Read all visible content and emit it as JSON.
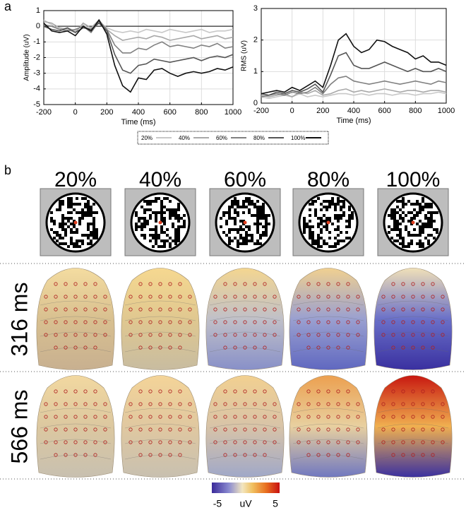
{
  "panel_labels": [
    "a",
    "b"
  ],
  "chart_data": [
    {
      "type": "line",
      "xlabel": "Time (ms)",
      "ylabel": "Amplitude (uV)",
      "x": [
        -200,
        -150,
        -100,
        -50,
        0,
        50,
        100,
        150,
        200,
        250,
        300,
        350,
        400,
        450,
        500,
        550,
        600,
        650,
        700,
        750,
        800,
        850,
        900,
        950,
        1000
      ],
      "xlim": [
        -200,
        1000
      ],
      "xticks": [
        -200,
        0,
        200,
        400,
        600,
        800,
        1000
      ],
      "ylim": [
        -5,
        1
      ],
      "yticks": [
        -5,
        -4,
        -3,
        -2,
        -1,
        0,
        1
      ],
      "grid": true,
      "series": [
        {
          "name": "20%",
          "color": "#c8c8c8",
          "values": [
            0.4,
            0.1,
            -0.2,
            -0.1,
            -0.3,
            0.1,
            -0.2,
            0.3,
            -0.1,
            -0.3,
            -0.4,
            -0.3,
            -0.4,
            -0.2,
            -0.3,
            -0.4,
            -0.2,
            -0.3,
            -0.4,
            -0.3,
            -0.2,
            -0.4,
            -0.3,
            -0.3,
            -0.2
          ]
        },
        {
          "name": "40%",
          "color": "#a8a8a8",
          "values": [
            0.3,
            0.2,
            -0.1,
            -0.2,
            -0.4,
            0.2,
            -0.1,
            0.4,
            -0.2,
            -0.6,
            -0.9,
            -0.8,
            -0.7,
            -0.8,
            -0.6,
            -0.7,
            -0.9,
            -0.8,
            -0.7,
            -0.6,
            -0.8,
            -0.7,
            -0.6,
            -0.8,
            -0.7
          ]
        },
        {
          "name": "60%",
          "color": "#808080",
          "values": [
            0.1,
            0.0,
            -0.2,
            -0.3,
            -0.2,
            0.0,
            -0.4,
            0.3,
            -0.2,
            -1.2,
            -1.7,
            -1.7,
            -1.4,
            -1.5,
            -1.2,
            -1.0,
            -1.3,
            -1.2,
            -1.3,
            -1.4,
            -1.2,
            -1.3,
            -1.1,
            -1.4,
            -1.3
          ]
        },
        {
          "name": "80%",
          "color": "#555555",
          "values": [
            0.0,
            -0.2,
            -0.3,
            -0.1,
            -0.4,
            -0.1,
            -0.2,
            0.2,
            -0.3,
            -1.8,
            -2.8,
            -3.0,
            -2.5,
            -2.4,
            -2.1,
            -2.2,
            -2.3,
            -2.2,
            -2.1,
            -2.0,
            -2.2,
            -2.0,
            -1.9,
            -2.0,
            -1.8
          ]
        },
        {
          "name": "100%",
          "color": "#111111",
          "values": [
            0.2,
            -0.3,
            -0.4,
            -0.3,
            -0.6,
            0.0,
            -0.3,
            0.4,
            -0.5,
            -2.5,
            -3.8,
            -4.2,
            -3.3,
            -3.4,
            -2.8,
            -2.7,
            -3.0,
            -3.2,
            -3.0,
            -2.9,
            -3.0,
            -2.9,
            -2.7,
            -2.8,
            -2.6
          ]
        }
      ]
    },
    {
      "type": "line",
      "xlabel": "Time (ms)",
      "ylabel": "RMS (uV)",
      "x": [
        -200,
        -150,
        -100,
        -50,
        0,
        50,
        100,
        150,
        200,
        250,
        300,
        350,
        400,
        450,
        500,
        550,
        600,
        650,
        700,
        750,
        800,
        850,
        900,
        950,
        1000
      ],
      "xlim": [
        -200,
        1000
      ],
      "xticks": [
        -200,
        0,
        200,
        400,
        600,
        800,
        1000
      ],
      "ylim": [
        0,
        3
      ],
      "yticks": [
        0,
        1,
        2,
        3
      ],
      "grid": true,
      "series": [
        {
          "name": "20%",
          "color": "#c8c8c8",
          "values": [
            0.2,
            0.15,
            0.2,
            0.25,
            0.2,
            0.3,
            0.2,
            0.25,
            0.2,
            0.25,
            0.3,
            0.3,
            0.25,
            0.3,
            0.25,
            0.3,
            0.3,
            0.25,
            0.3,
            0.3,
            0.25,
            0.3,
            0.3,
            0.35,
            0.3
          ]
        },
        {
          "name": "40%",
          "color": "#a8a8a8",
          "values": [
            0.25,
            0.2,
            0.25,
            0.3,
            0.2,
            0.35,
            0.3,
            0.4,
            0.25,
            0.3,
            0.4,
            0.45,
            0.35,
            0.4,
            0.35,
            0.4,
            0.45,
            0.4,
            0.35,
            0.4,
            0.4,
            0.35,
            0.4,
            0.4,
            0.35
          ]
        },
        {
          "name": "60%",
          "color": "#808080",
          "values": [
            0.2,
            0.25,
            0.3,
            0.25,
            0.35,
            0.3,
            0.35,
            0.5,
            0.3,
            0.6,
            0.8,
            0.85,
            0.7,
            0.65,
            0.6,
            0.65,
            0.7,
            0.65,
            0.6,
            0.65,
            0.7,
            0.65,
            0.6,
            0.7,
            0.65
          ]
        },
        {
          "name": "80%",
          "color": "#555555",
          "values": [
            0.3,
            0.25,
            0.35,
            0.3,
            0.4,
            0.35,
            0.45,
            0.6,
            0.35,
            0.9,
            1.5,
            1.6,
            1.2,
            1.1,
            1.1,
            1.2,
            1.3,
            1.2,
            1.1,
            1.0,
            1.1,
            1.0,
            1.0,
            1.1,
            1.0
          ]
        },
        {
          "name": "100%",
          "color": "#111111",
          "values": [
            0.3,
            0.35,
            0.4,
            0.35,
            0.5,
            0.4,
            0.55,
            0.7,
            0.5,
            1.2,
            2.0,
            2.2,
            1.8,
            1.6,
            1.7,
            2.0,
            1.95,
            1.8,
            1.7,
            1.6,
            1.4,
            1.5,
            1.3,
            1.3,
            1.2
          ]
        }
      ]
    }
  ],
  "topography": {
    "columns": [
      "20%",
      "40%",
      "60%",
      "80%",
      "100%"
    ],
    "rows": [
      "316 ms",
      "566 ms"
    ],
    "colorbar": {
      "ticks": [
        -5,
        5
      ],
      "label": "uV"
    }
  }
}
